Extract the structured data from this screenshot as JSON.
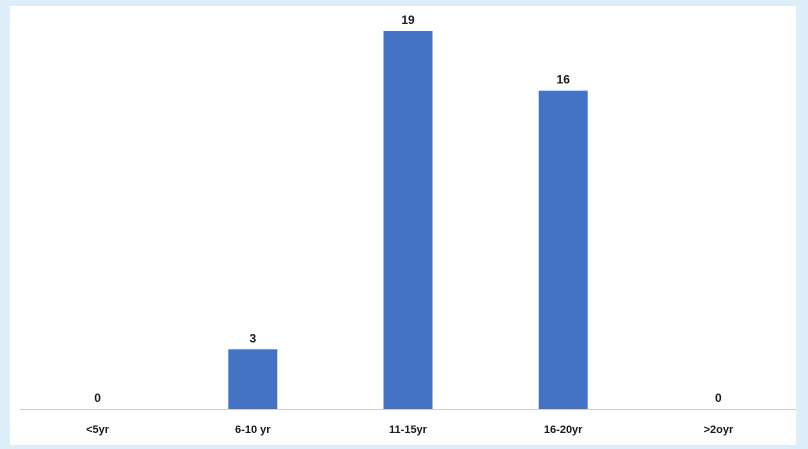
{
  "chart_data": {
    "type": "bar",
    "categories": [
      "<5yr",
      "6-10 yr",
      "11-15yr",
      "16-20yr",
      ">2oyr"
    ],
    "values": [
      0,
      3,
      19,
      16,
      0
    ],
    "data_labels": [
      "0",
      "3",
      "19",
      "16",
      "0"
    ],
    "title": "",
    "xlabel": "",
    "ylabel": "",
    "ylim": [
      0,
      19
    ],
    "grid": false,
    "legend": "none",
    "bar_color": "#4472c4",
    "axis_color": "#d0d0d0"
  }
}
